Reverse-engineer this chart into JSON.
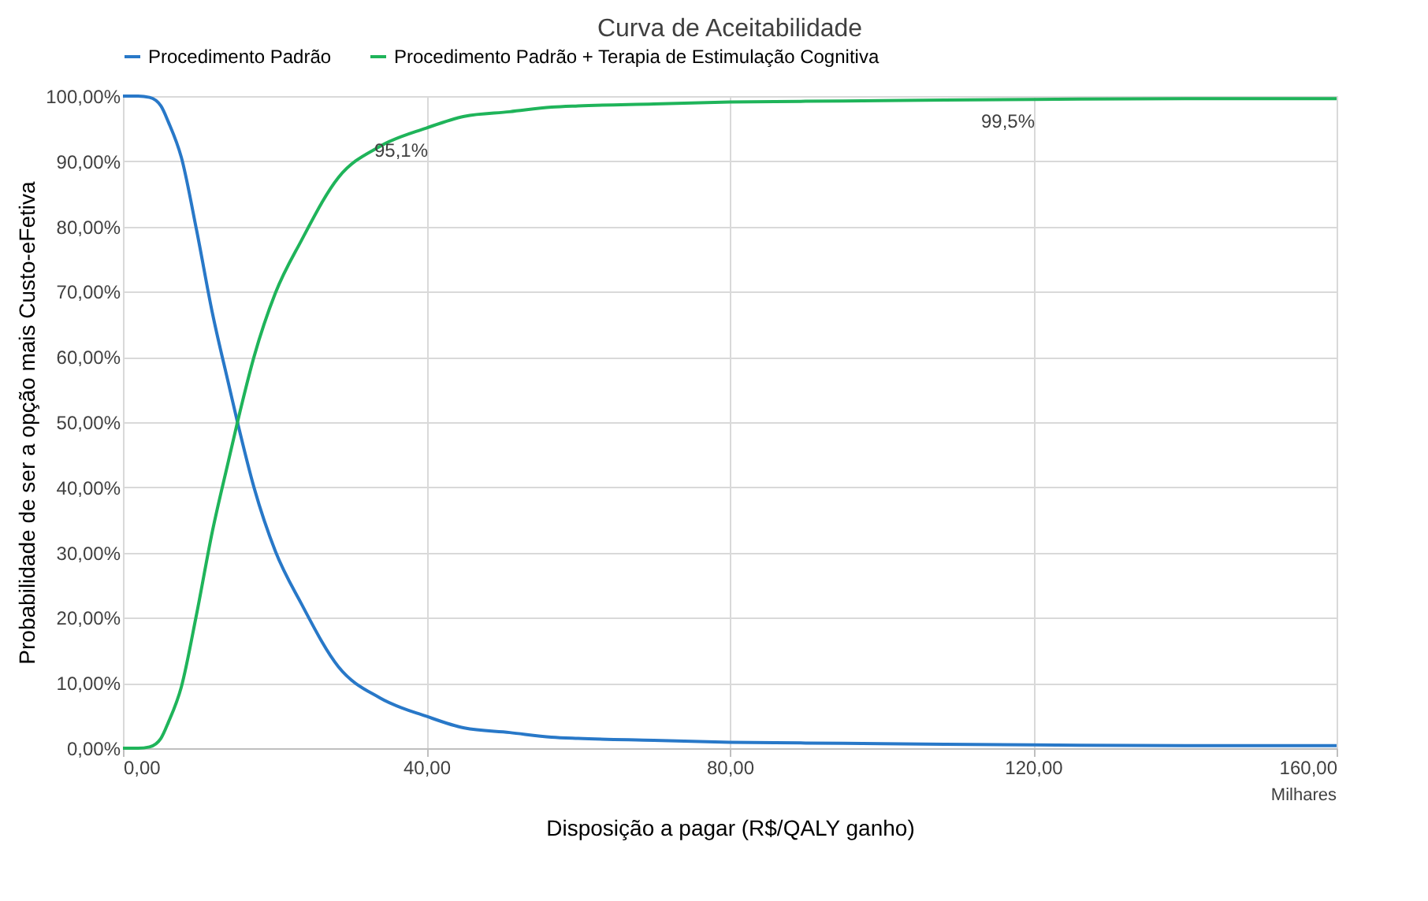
{
  "chart_data": {
    "type": "line",
    "title": "Curva de Aceitabilidade",
    "xlabel": "Disposição a pagar (R$/QALY ganho)",
    "ylabel": "Probabilidade de ser a opção mais Custo-eFetiva",
    "x": [
      0,
      2,
      3.5,
      5,
      6,
      7.7,
      9.7,
      11.8,
      13.9,
      15.1,
      17.3,
      20.1,
      23.5,
      28.4,
      33.9,
      40,
      45,
      51,
      56.5,
      60,
      70,
      80,
      90,
      100,
      120,
      140,
      160
    ],
    "series": [
      {
        "name": "Procedimento Padrão",
        "color": "#2878c8",
        "values": [
          100,
          100,
          99.8,
          98.5,
          96,
          90.6,
          79.5,
          66.7,
          56,
          50,
          39.9,
          30.2,
          22.2,
          12.5,
          7.7,
          4.9,
          3.1,
          2.4,
          1.7,
          1.5,
          1.2,
          0.9,
          0.8,
          0.7,
          0.5,
          0.4,
          0.4
        ]
      },
      {
        "name": "Procedimento Padrão + Terapia de Estimulação Cognitiva",
        "color": "#1fb45a",
        "values": [
          0,
          0,
          0.2,
          1.5,
          4,
          9.4,
          20.5,
          33.3,
          44,
          50,
          60.1,
          69.8,
          77.8,
          87.5,
          92.3,
          95.1,
          96.9,
          97.6,
          98.3,
          98.5,
          98.8,
          99.1,
          99.2,
          99.3,
          99.5,
          99.6,
          99.6
        ]
      }
    ],
    "xlim": [
      0,
      160
    ],
    "xticks": [
      {
        "value": 0,
        "label": "0,00"
      },
      {
        "value": 40,
        "label": "40,00"
      },
      {
        "value": 80,
        "label": "80,00"
      },
      {
        "value": 120,
        "label": "120,00"
      },
      {
        "value": 160,
        "label": "160,00"
      }
    ],
    "ylim": [
      0,
      100
    ],
    "yticks": [
      {
        "value": 0,
        "label": "0,00%"
      },
      {
        "value": 10,
        "label": "10,00%"
      },
      {
        "value": 20,
        "label": "20,00%"
      },
      {
        "value": 30,
        "label": "30,00%"
      },
      {
        "value": 40,
        "label": "40,00%"
      },
      {
        "value": 50,
        "label": "50,00%"
      },
      {
        "value": 60,
        "label": "60,00%"
      },
      {
        "value": 70,
        "label": "70,00%"
      },
      {
        "value": 80,
        "label": "80,00%"
      },
      {
        "value": 90,
        "label": "90,00%"
      },
      {
        "value": 100,
        "label": "100,00%"
      }
    ],
    "annotations": [
      {
        "text": "95,1%",
        "x": 40,
        "y": 95.1
      },
      {
        "text": "99,5%",
        "x": 120,
        "y": 99.5
      },
      "Milhares"
    ],
    "grid": true,
    "legend": "top",
    "marker": "none",
    "line_style": "solid"
  }
}
